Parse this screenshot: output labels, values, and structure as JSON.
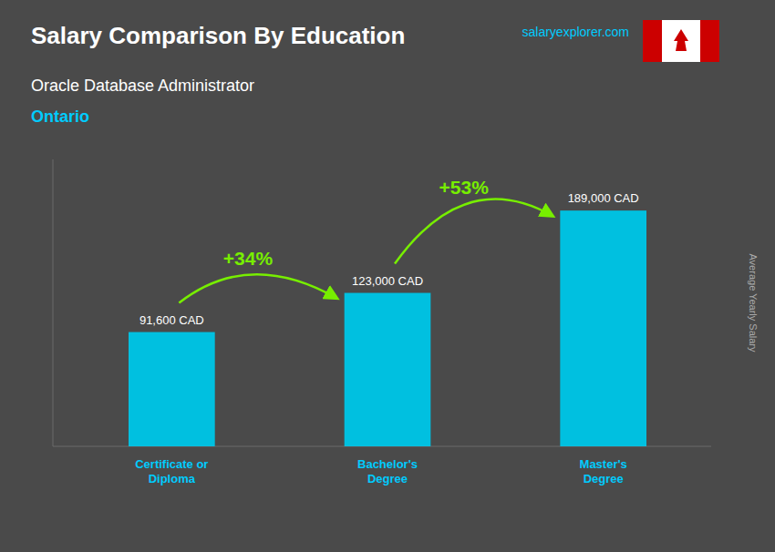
{
  "chart_data": {
    "type": "bar",
    "title": "Salary Comparison By Education",
    "subtitle": [
      "Oracle Database Administrator",
      "Ontario"
    ],
    "source": "salaryexplorer.com",
    "y_label": "Average Yearly Salary",
    "categories": [
      "Certificate or\nDiploma",
      "Bachelor's\nDegree",
      "Master's\nDegree"
    ],
    "values": [
      91600,
      123000,
      189000
    ],
    "value_labels": [
      "91,600 CAD",
      "123,000 CAD",
      "189,000 CAD"
    ],
    "color": "#00c0e0",
    "data_labels": true,
    "annotations": [
      {
        "text": "+34%",
        "color": "#77ee00"
      },
      {
        "text": "+53%",
        "color": "#77ee00"
      }
    ],
    "ylim": [
      0,
      230000
    ],
    "tick_labels": false,
    "grid": false
  }
}
